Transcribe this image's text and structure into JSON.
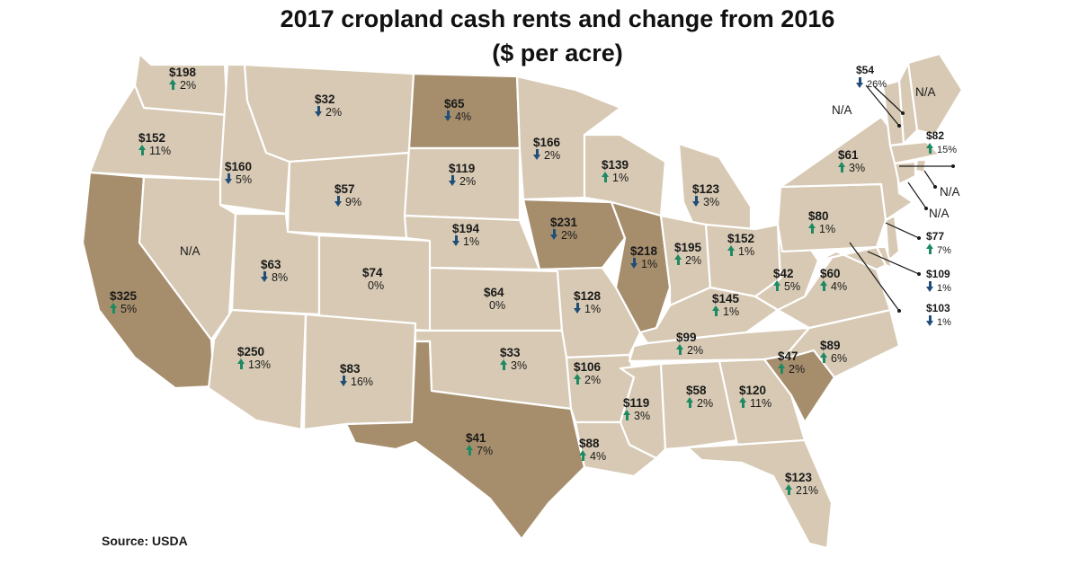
{
  "title_line1": "2017 cropland cash rents and change from 2016",
  "title_line2": "($ per acre)",
  "source": "Source: USDA",
  "colors": {
    "region_default": "#d7c9b3",
    "region_highlight": "#a68e6d",
    "border": "#ffffff",
    "increase_arrow": "#1e8a63",
    "decrease_arrow": "#1f4e78"
  },
  "states": [
    {
      "id": "WA",
      "value": "$198",
      "change": "2%",
      "dir": "up",
      "highlight": false
    },
    {
      "id": "OR",
      "value": "$152",
      "change": "11%",
      "dir": "up",
      "highlight": false
    },
    {
      "id": "CA",
      "value": "$325",
      "change": "5%",
      "dir": "up",
      "highlight": true
    },
    {
      "id": "ID",
      "value": "$160",
      "change": "5%",
      "dir": "down",
      "highlight": false
    },
    {
      "id": "NV",
      "value": "N/A",
      "change": "",
      "dir": "none",
      "highlight": false
    },
    {
      "id": "MT",
      "value": "$32",
      "change": "2%",
      "dir": "down",
      "highlight": false
    },
    {
      "id": "WY",
      "value": "$57",
      "change": "9%",
      "dir": "down",
      "highlight": false
    },
    {
      "id": "UT",
      "value": "$63",
      "change": "8%",
      "dir": "down",
      "highlight": false
    },
    {
      "id": "AZ",
      "value": "$250",
      "change": "13%",
      "dir": "up",
      "highlight": false
    },
    {
      "id": "CO",
      "value": "$74",
      "change": "0%",
      "dir": "none",
      "highlight": false
    },
    {
      "id": "NM",
      "value": "$83",
      "change": "16%",
      "dir": "down",
      "highlight": false
    },
    {
      "id": "ND",
      "value": "$65",
      "change": "4%",
      "dir": "down",
      "highlight": true
    },
    {
      "id": "SD",
      "value": "$119",
      "change": "2%",
      "dir": "down",
      "highlight": false
    },
    {
      "id": "NE",
      "value": "$194",
      "change": "1%",
      "dir": "down",
      "highlight": false
    },
    {
      "id": "KS",
      "value": "$64",
      "change": "0%",
      "dir": "none",
      "highlight": false
    },
    {
      "id": "OK",
      "value": "$33",
      "change": "3%",
      "dir": "up",
      "highlight": false
    },
    {
      "id": "TX",
      "value": "$41",
      "change": "7%",
      "dir": "up",
      "highlight": true
    },
    {
      "id": "MN",
      "value": "$166",
      "change": "2%",
      "dir": "down",
      "highlight": false
    },
    {
      "id": "IA",
      "value": "$231",
      "change": "2%",
      "dir": "down",
      "highlight": true
    },
    {
      "id": "MO",
      "value": "$128",
      "change": "1%",
      "dir": "down",
      "highlight": false
    },
    {
      "id": "AR",
      "value": "$106",
      "change": "2%",
      "dir": "up",
      "highlight": false
    },
    {
      "id": "LA",
      "value": "$88",
      "change": "4%",
      "dir": "up",
      "highlight": false
    },
    {
      "id": "WI",
      "value": "$139",
      "change": "1%",
      "dir": "up",
      "highlight": false
    },
    {
      "id": "IL",
      "value": "$218",
      "change": "1%",
      "dir": "down",
      "highlight": true
    },
    {
      "id": "MI",
      "value": "$123",
      "change": "3%",
      "dir": "down",
      "highlight": false
    },
    {
      "id": "IN",
      "value": "$195",
      "change": "2%",
      "dir": "up",
      "highlight": false
    },
    {
      "id": "OH",
      "value": "$152",
      "change": "1%",
      "dir": "up",
      "highlight": false
    },
    {
      "id": "KY",
      "value": "$145",
      "change": "1%",
      "dir": "up",
      "highlight": false
    },
    {
      "id": "TN",
      "value": "$99",
      "change": "2%",
      "dir": "up",
      "highlight": false
    },
    {
      "id": "MS",
      "value": "$119",
      "change": "3%",
      "dir": "up",
      "highlight": false
    },
    {
      "id": "AL",
      "value": "$58",
      "change": "2%",
      "dir": "up",
      "highlight": false
    },
    {
      "id": "GA",
      "value": "$120",
      "change": "11%",
      "dir": "up",
      "highlight": false
    },
    {
      "id": "FL",
      "value": "$123",
      "change": "21%",
      "dir": "up",
      "highlight": false
    },
    {
      "id": "SC",
      "value": "$47",
      "change": "2%",
      "dir": "up",
      "highlight": true
    },
    {
      "id": "NC",
      "value": "$89",
      "change": "6%",
      "dir": "up",
      "highlight": false
    },
    {
      "id": "VA",
      "value": "$60",
      "change": "4%",
      "dir": "up",
      "highlight": false
    },
    {
      "id": "WV",
      "value": "$42",
      "change": "5%",
      "dir": "up",
      "highlight": false
    },
    {
      "id": "PA",
      "value": "$80",
      "change": "1%",
      "dir": "up",
      "highlight": false
    },
    {
      "id": "NY",
      "value": "$61",
      "change": "3%",
      "dir": "up",
      "highlight": false
    },
    {
      "id": "NJ",
      "value": "$77",
      "change": "7%",
      "dir": "up",
      "highlight": false
    },
    {
      "id": "MD",
      "value": "$109",
      "change": "1%",
      "dir": "down",
      "highlight": false
    },
    {
      "id": "DE",
      "value": "$103",
      "change": "1%",
      "dir": "down",
      "highlight": false
    },
    {
      "id": "ME",
      "value": "N/A",
      "change": "",
      "dir": "none",
      "highlight": false
    },
    {
      "id": "NH",
      "value": "$54",
      "change": "26%",
      "dir": "down",
      "highlight": false
    },
    {
      "id": "VT",
      "value": "N/A",
      "change": "",
      "dir": "none",
      "highlight": false
    },
    {
      "id": "MA",
      "value": "$82",
      "change": "15%",
      "dir": "up",
      "highlight": false
    },
    {
      "id": "RI",
      "value": "N/A",
      "change": "",
      "dir": "none",
      "highlight": false
    },
    {
      "id": "CT",
      "value": "N/A",
      "change": "",
      "dir": "none",
      "highlight": false
    }
  ]
}
